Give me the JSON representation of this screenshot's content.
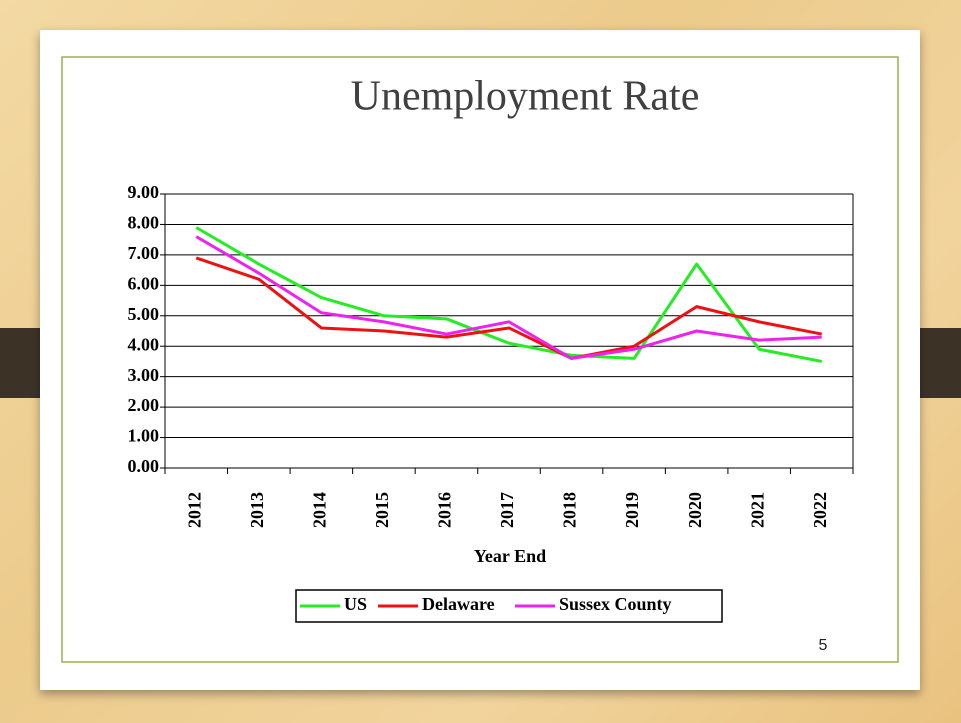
{
  "chart_data": {
    "type": "line",
    "title": "Unemployment Rate",
    "x_label": "Year End",
    "categories": [
      "2012",
      "2013",
      "2014",
      "2015",
      "2016",
      "2017",
      "2018",
      "2019",
      "2020",
      "2021",
      "2022"
    ],
    "series": [
      {
        "name": "US",
        "color": "#22ee22",
        "values": [
          7.9,
          6.7,
          5.6,
          5.0,
          4.9,
          4.1,
          3.7,
          3.6,
          6.7,
          3.9,
          3.5
        ]
      },
      {
        "name": "Delaware",
        "color": "#ee1111",
        "values": [
          6.9,
          6.2,
          4.6,
          4.5,
          4.3,
          4.6,
          3.6,
          4.0,
          5.3,
          4.8,
          4.4
        ]
      },
      {
        "name": "Sussex County",
        "color": "#ee22ee",
        "values": [
          7.6,
          6.4,
          5.1,
          4.8,
          4.4,
          4.8,
          3.6,
          3.9,
          4.5,
          4.2,
          4.3
        ]
      }
    ],
    "ylim": [
      0,
      9
    ],
    "yticks": [
      {
        "value": 0,
        "label": "0.00"
      },
      {
        "value": 1,
        "label": "1.00"
      },
      {
        "value": 2,
        "label": "2.00"
      },
      {
        "value": 3,
        "label": "3.00"
      },
      {
        "value": 4,
        "label": "4.00"
      },
      {
        "value": 5,
        "label": "5.00"
      },
      {
        "value": 6,
        "label": "6.00"
      },
      {
        "value": 7,
        "label": "7.00"
      },
      {
        "value": 8,
        "label": "8.00"
      },
      {
        "value": 9,
        "label": "9.00"
      }
    ],
    "grid": true,
    "legend": "bottom"
  },
  "slide": {
    "page_number": "5"
  }
}
